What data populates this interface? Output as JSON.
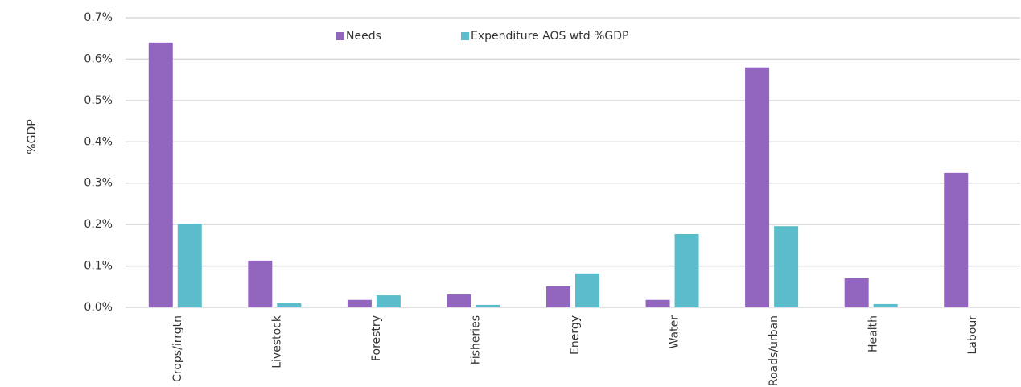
{
  "chart_data": {
    "type": "bar",
    "y_label": "%GDP",
    "categories": [
      "Crops/irrgtn",
      "Livestock",
      "Forestry",
      "Fisheries",
      "Energy",
      "Water",
      "Roads/urban",
      "Health",
      "Labour"
    ],
    "series": [
      {
        "name": "Needs",
        "color": "#9266bf",
        "values": [
          0.64,
          0.113,
          0.018,
          0.031,
          0.051,
          0.018,
          0.58,
          0.07,
          0.325
        ]
      },
      {
        "name": "Expenditure AOS wtd %GDP",
        "color": "#5bbccb",
        "values": [
          0.202,
          0.01,
          0.029,
          0.006,
          0.082,
          0.177,
          0.196,
          0.008,
          0
        ]
      }
    ],
    "ylim": [
      0,
      0.7
    ],
    "yticks": [
      {
        "value": 0,
        "label": "0.0%"
      },
      {
        "value": 0.1,
        "label": "0.1%"
      },
      {
        "value": 0.2,
        "label": "0.2%"
      },
      {
        "value": 0.3,
        "label": "0.3%"
      },
      {
        "value": 0.4,
        "label": "0.4%"
      },
      {
        "value": 0.5,
        "label": "0.5%"
      },
      {
        "value": 0.6,
        "label": "0.6%"
      },
      {
        "value": 0.7,
        "label": "0.7%"
      }
    ],
    "grid": true
  }
}
